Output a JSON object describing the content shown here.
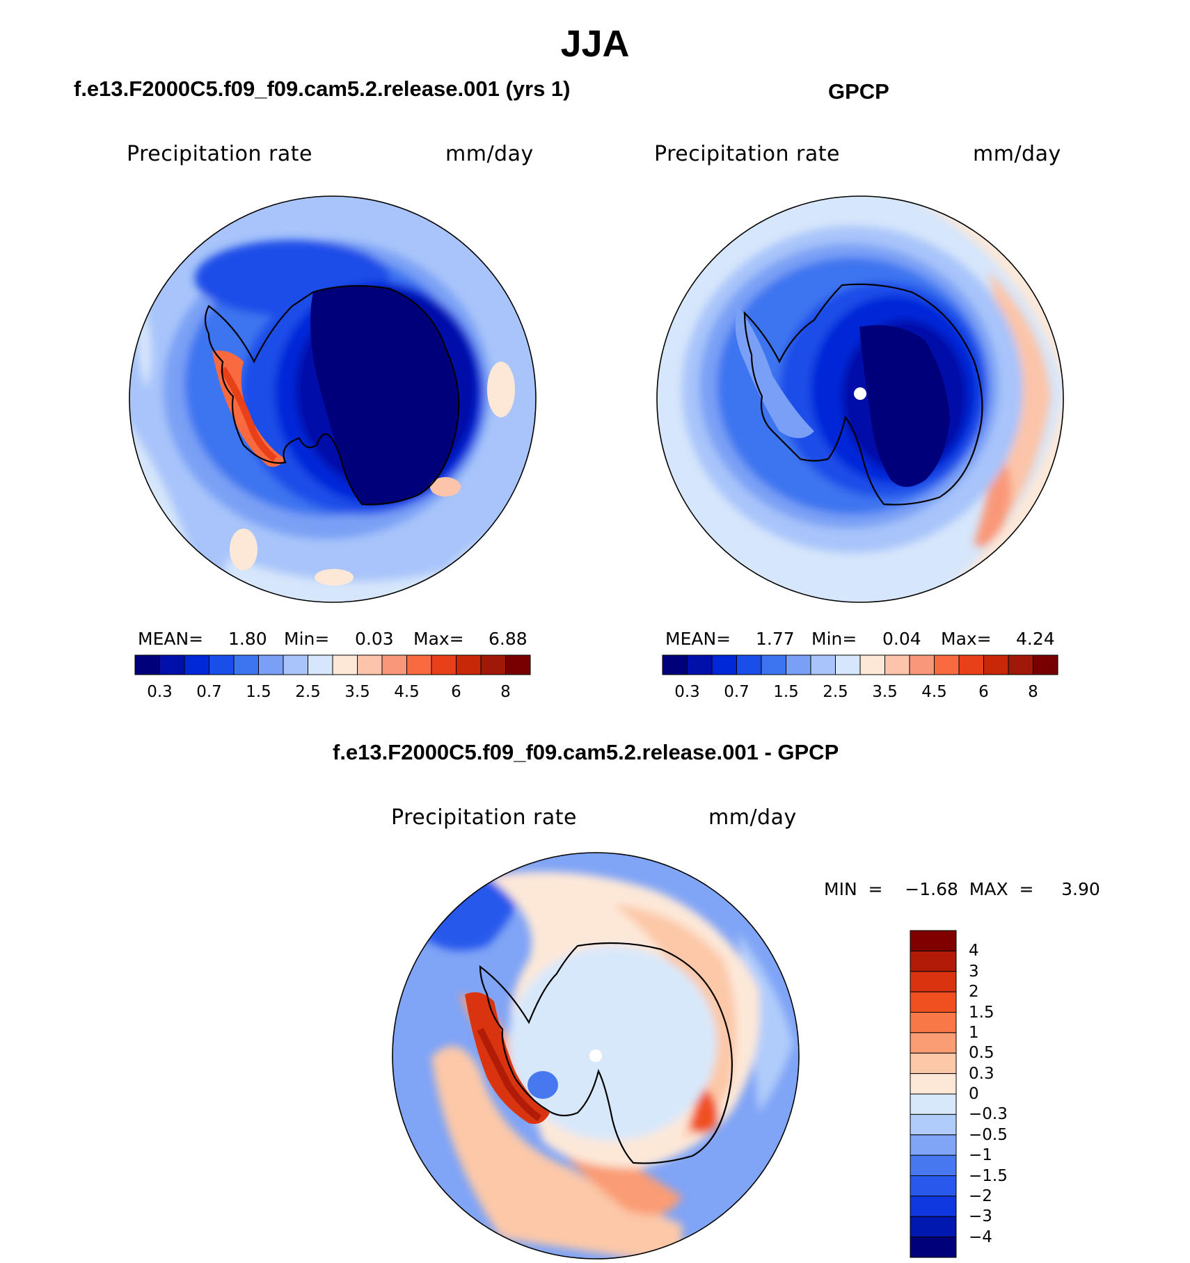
{
  "figure": {
    "season": "JJA",
    "colors": {
      "abs_scale": [
        "#00007a",
        "#0010a8",
        "#0028d8",
        "#1a4ee8",
        "#3d74f0",
        "#7aa0f5",
        "#a8c4fa",
        "#d6e6fb",
        "#fde8d8",
        "#fcc4a8",
        "#f99878",
        "#f96a40",
        "#e84018",
        "#c82808",
        "#a01808",
        "#780000"
      ],
      "diff_scale": [
        "#00007a",
        "#0018b0",
        "#1038e0",
        "#2858ec",
        "#4878f0",
        "#80a4f6",
        "#b0ccfb",
        "#d8e8fb",
        "#fde8d8",
        "#fcc8a8",
        "#fa9c74",
        "#f87848",
        "#f05020",
        "#d83410",
        "#b01c08",
        "#800000"
      ]
    },
    "panels": [
      {
        "id": "model",
        "title": "f.e13.F2000C5.f09_f09.cam5.2.release.001 (yrs 1)",
        "variable": "Precipitation  rate",
        "units": "mm/day",
        "stats": {
          "mean_label": "MEAN=",
          "mean": "1.80",
          "min_label": "Min=",
          "min": "0.03",
          "max_label": "Max=",
          "max": "6.88"
        },
        "colorbar_ticks": [
          "0.3",
          "0.7",
          "1.5",
          "2.5",
          "3.5",
          "4.5",
          "6",
          "8"
        ]
      },
      {
        "id": "obs",
        "title": "GPCP",
        "variable": "Precipitation  rate",
        "units": "mm/day",
        "stats": {
          "mean_label": "MEAN=",
          "mean": "1.77",
          "min_label": "Min=",
          "min": "0.04",
          "max_label": "Max=",
          "max": "4.24"
        },
        "colorbar_ticks": [
          "0.3",
          "0.7",
          "1.5",
          "2.5",
          "3.5",
          "4.5",
          "6",
          "8"
        ]
      },
      {
        "id": "diff",
        "title": "f.e13.F2000C5.f09_f09.cam5.2.release.001 - GPCP",
        "variable": "Precipitation  rate",
        "units": "mm/day",
        "stats": {
          "text": "MIN  =    −1.68  MAX  =     3.90"
        },
        "colorbar_ticks": [
          "4",
          "3",
          "2",
          "1.5",
          "1",
          "0.5",
          "0.3",
          "0",
          "−0.3",
          "−0.5",
          "−1",
          "−1.5",
          "−2",
          "−3",
          "−4"
        ]
      }
    ]
  }
}
